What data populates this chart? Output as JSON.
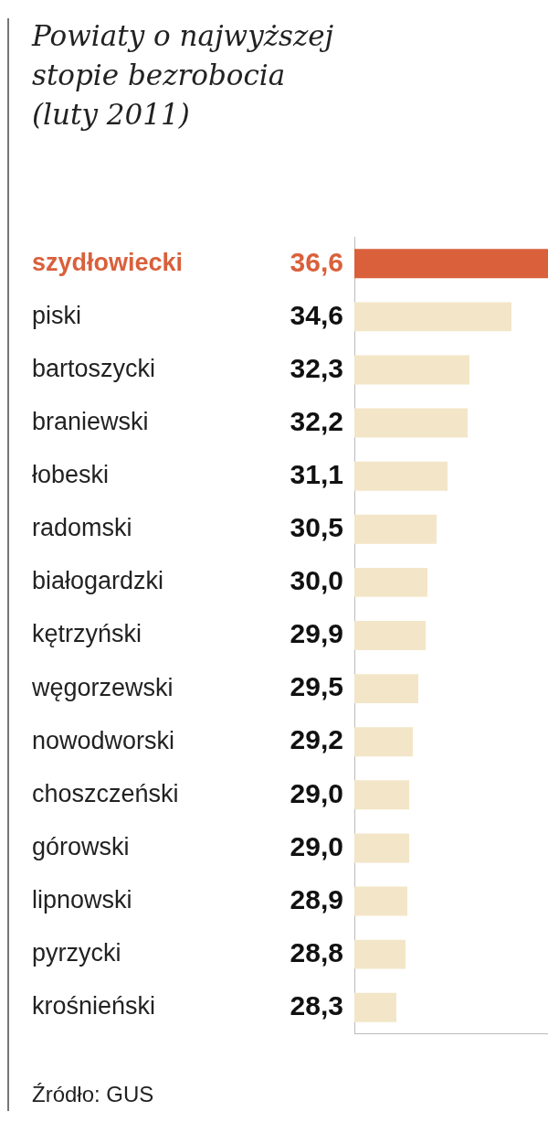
{
  "chart_data": {
    "type": "bar",
    "orientation": "horizontal",
    "title": "Powiaty o najwyższej stopie bezrobocia (luty 2011)",
    "categories": [
      "szydłowiecki",
      "piski",
      "bartoszycki",
      "braniewski",
      "łobeski",
      "radomski",
      "białogardzki",
      "kętrzyński",
      "węgorzewski",
      "nowodworski",
      "choszczeński",
      "górowski",
      "lipnowski",
      "pyrzycki",
      "krośnieński"
    ],
    "values": [
      36.6,
      34.6,
      32.3,
      32.2,
      31.1,
      30.5,
      30.0,
      29.9,
      29.5,
      29.2,
      29.0,
      29.0,
      28.9,
      28.8,
      28.3
    ],
    "colors": [
      "#d9603b",
      "#f3e6c8",
      "#f3e6c8",
      "#f3e6c8",
      "#f3e6c8",
      "#f3e6c8",
      "#f3e6c8",
      "#f3e6c8",
      "#f3e6c8",
      "#f3e6c8",
      "#f3e6c8",
      "#f3e6c8",
      "#f3e6c8",
      "#f3e6c8",
      "#f3e6c8"
    ],
    "value_labels": [
      "36,6",
      "34,6",
      "32,3",
      "32,2",
      "31,1",
      "30,5",
      "30,0",
      "29,9",
      "29,5",
      "29,2",
      "29,0",
      "29,0",
      "28,9",
      "28,8",
      "28,3"
    ],
    "xlim": [
      26,
      36.6
    ],
    "tick_labels": "y",
    "annotations": [
      "Źródło: GUS"
    ]
  }
}
